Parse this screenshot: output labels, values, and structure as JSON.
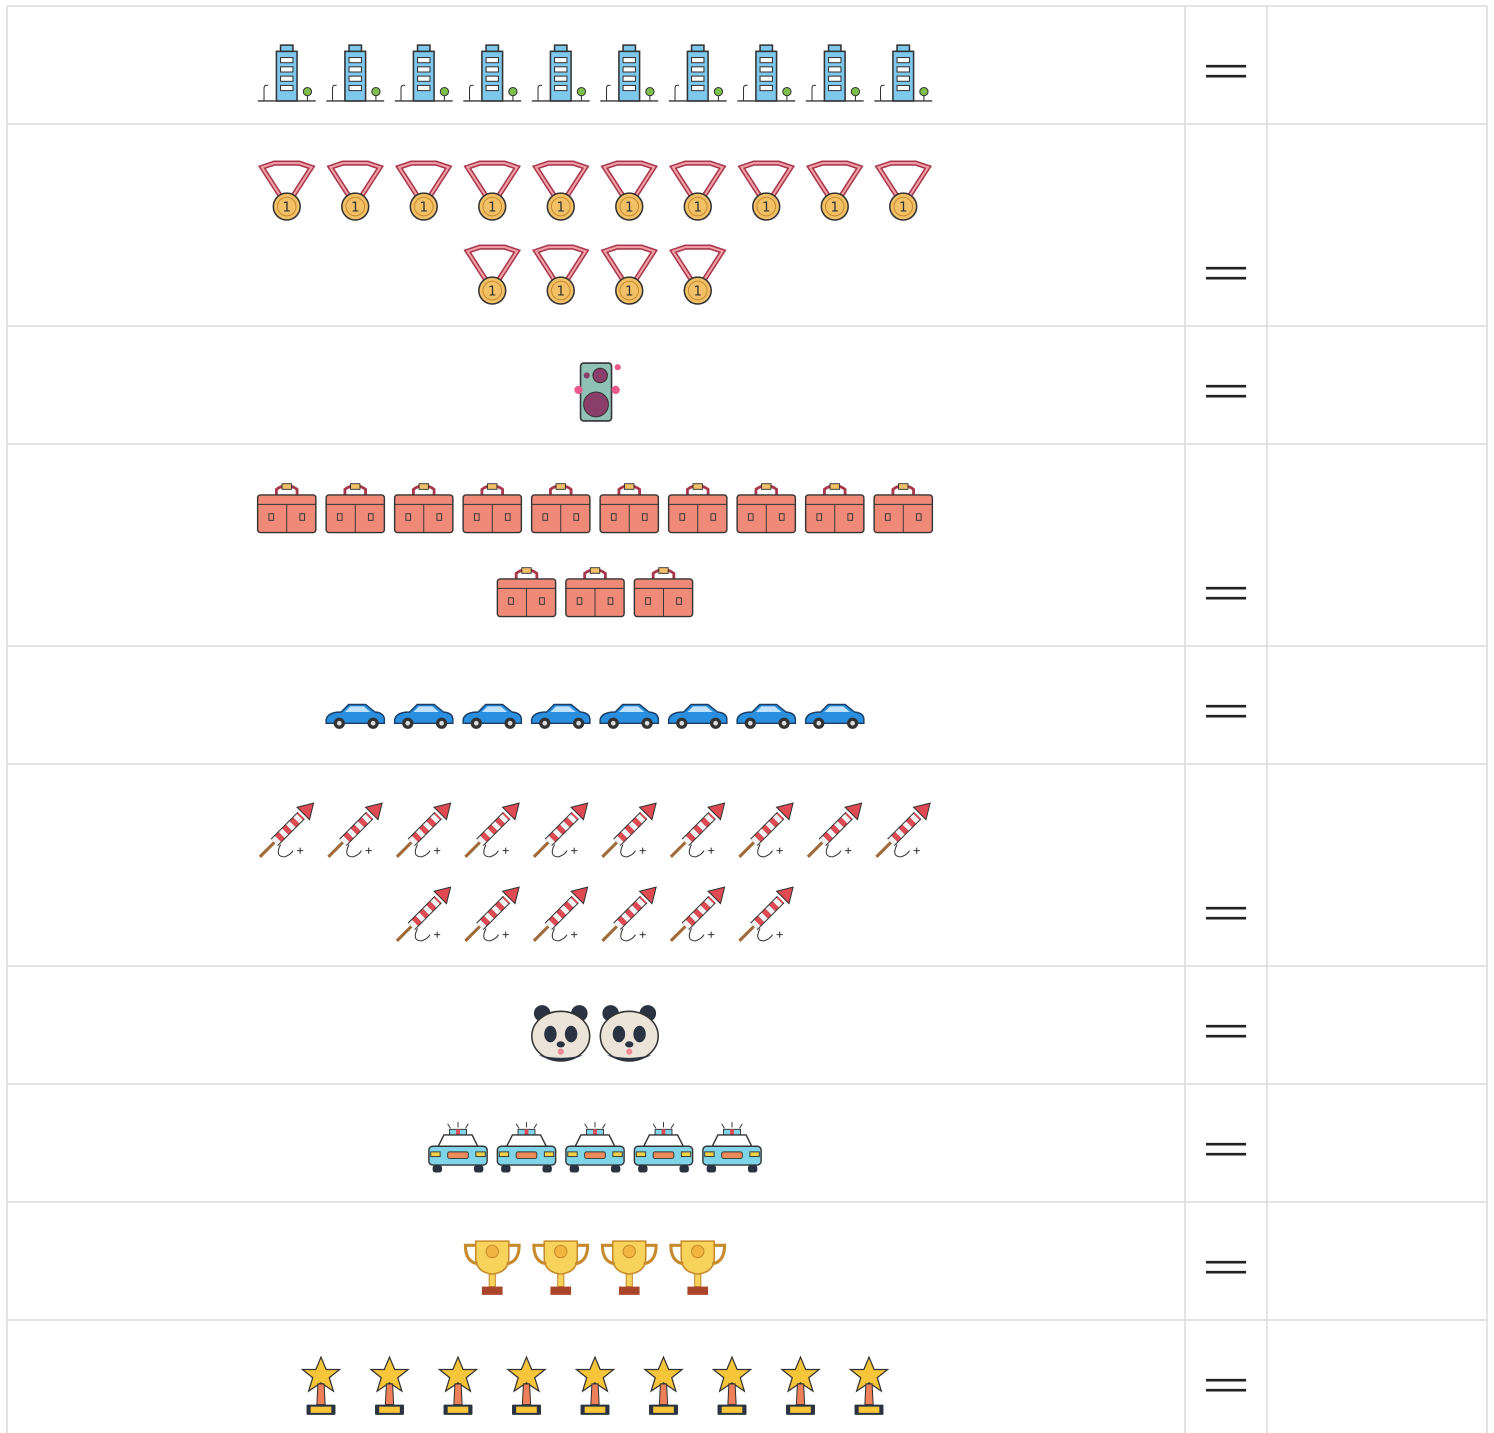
{
  "rows": [
    {
      "count": 10,
      "sign": "="
    },
    {
      "count": 14,
      "sign": "="
    },
    {
      "count": 1,
      "sign": "="
    },
    {
      "count": 13,
      "sign": "="
    },
    {
      "count": 8,
      "sign": "="
    },
    {
      "count": 16,
      "sign": "="
    },
    {
      "count": 2,
      "sign": "="
    },
    {
      "count": 5,
      "sign": "="
    },
    {
      "count": 4,
      "sign": "="
    },
    {
      "count": 9,
      "sign": "="
    }
  ]
}
